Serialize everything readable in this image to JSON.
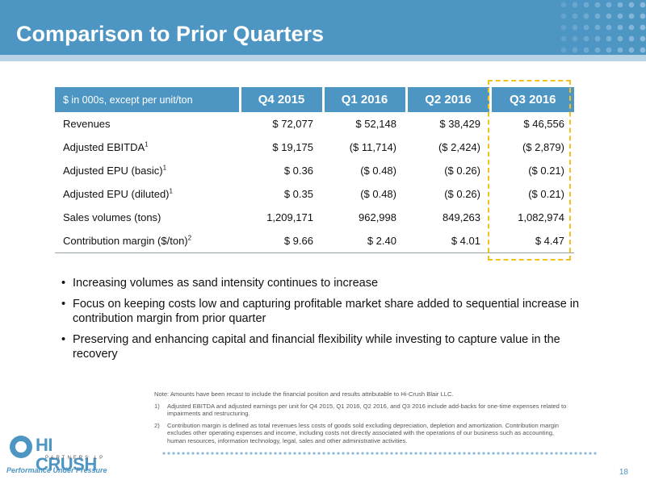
{
  "slide": {
    "title": "Comparison to Prior Quarters",
    "page_number": "18"
  },
  "table": {
    "units_label": "$ in 000s, except per unit/ton",
    "columns": [
      "Q4 2015",
      "Q1 2016",
      "Q2 2016",
      "Q3 2016"
    ],
    "rows": [
      {
        "label": "Revenues",
        "sup": "",
        "values": [
          "$ 72,077",
          "$ 52,148",
          "$ 38,429",
          "$ 46,556"
        ]
      },
      {
        "label": "Adjusted EBITDA",
        "sup": "1",
        "values": [
          "$ 19,175",
          "($ 11,714)",
          "($ 2,424)",
          "($ 2,879)"
        ]
      },
      {
        "label": "Adjusted EPU (basic)",
        "sup": "1",
        "values": [
          "$ 0.36",
          "($ 0.48)",
          "($ 0.26)",
          "($ 0.21)"
        ]
      },
      {
        "label": "Adjusted EPU (diluted)",
        "sup": "1",
        "values": [
          "$ 0.35",
          "($ 0.48)",
          "($ 0.26)",
          "($ 0.21)"
        ]
      },
      {
        "label": "Sales volumes (tons)",
        "sup": "",
        "values": [
          "1,209,171",
          "962,998",
          "849,263",
          "1,082,974"
        ]
      },
      {
        "label": "Contribution margin ($/ton)",
        "sup": "2",
        "values": [
          "$ 9.66",
          "$ 2.40",
          "$ 4.01",
          "$ 4.47"
        ]
      }
    ]
  },
  "bullets": [
    "Increasing volumes as sand intensity continues to increase",
    "Focus on keeping costs low and capturing profitable market share added to sequential increase in contribution margin from prior quarter",
    "Preserving and enhancing capital and financial flexibility while investing to capture value in the recovery"
  ],
  "notes": {
    "main": "Note: Amounts have been recast to include the financial position and results attributable to Hi-Crush Blair LLC.",
    "footnotes": [
      {
        "num": "1)",
        "text": "Adjusted EBITDA and adjusted earnings per unit for Q4 2015, Q1 2016, Q2 2016, and Q3 2016 include add-backs for one-time expenses related to impairments and restructuring."
      },
      {
        "num": "2)",
        "text": "Contribution margin is defined as total revenues less costs of goods sold excluding depreciation, depletion and amortization. Contribution margin excludes other operating expenses and income, including costs not directly associated with the operations of our business such as accounting, human resources, information technology, legal, sales and other administrative activities."
      }
    ]
  },
  "logo": {
    "name": "HI CRUSH",
    "subline": "PARTNERS LP",
    "tagline": "Performance Under Pressure"
  },
  "colors": {
    "brand_blue": "#4d95c2",
    "header_band": "#b9d3e6",
    "highlight_dash": "#f2c21b"
  }
}
